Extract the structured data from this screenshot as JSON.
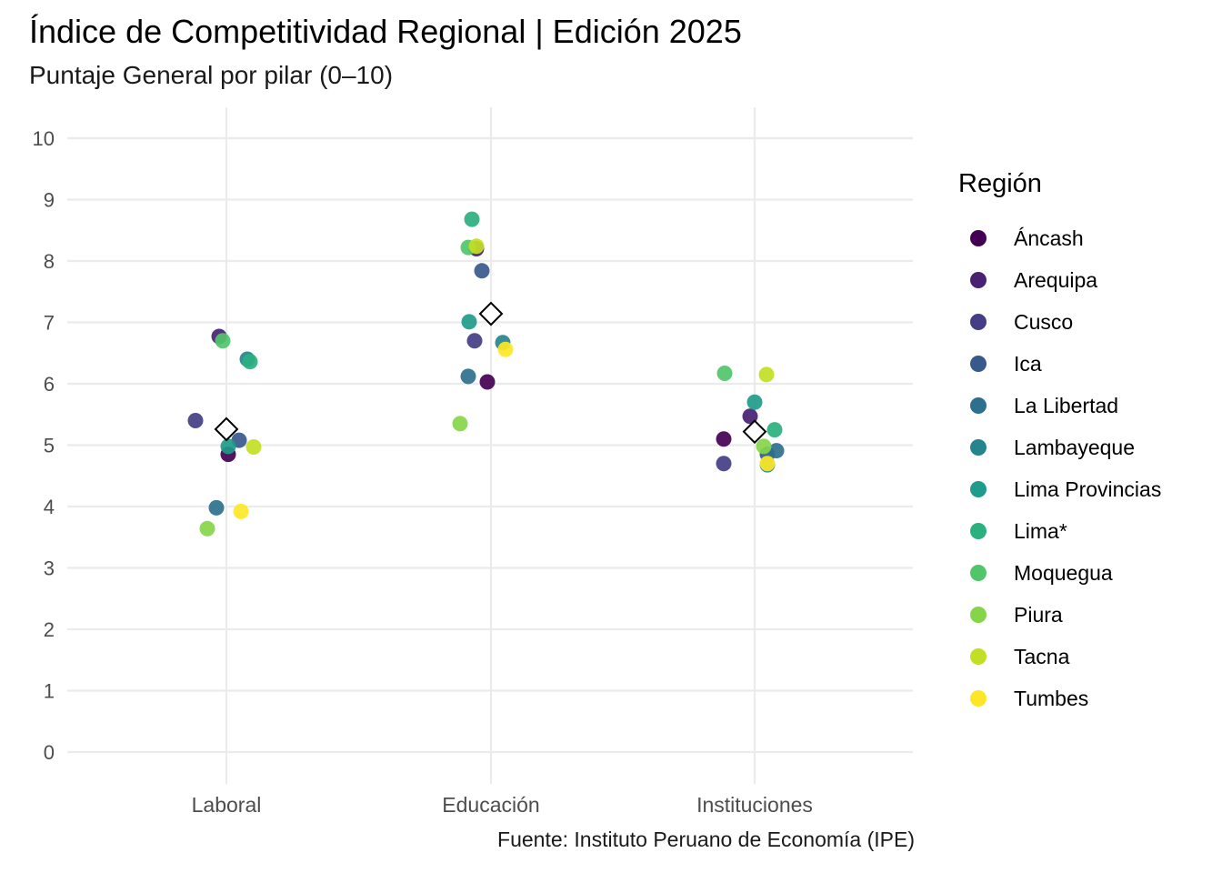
{
  "title": "Índice de Competitividad Regional | Edición 2025",
  "subtitle": "Puntaje General por pilar (0–10)",
  "caption": "Fuente: Instituto Peruano de Economía (IPE)",
  "legend": {
    "title": "Región",
    "placement": "right",
    "items": [
      {
        "label": "Áncash",
        "color": "#440154"
      },
      {
        "label": "Arequipa",
        "color": "#482173"
      },
      {
        "label": "Cusco",
        "color": "#433E85"
      },
      {
        "label": "Ica",
        "color": "#38598C"
      },
      {
        "label": "La Libertad",
        "color": "#2D708E"
      },
      {
        "label": "Lambayeque",
        "color": "#25858E"
      },
      {
        "label": "Lima Provincias",
        "color": "#1E9B8A"
      },
      {
        "label": "Lima*",
        "color": "#2BB07F"
      },
      {
        "label": "Moquegua",
        "color": "#51C56A"
      },
      {
        "label": "Piura",
        "color": "#85D54A"
      },
      {
        "label": "Tacna",
        "color": "#C2DF23"
      },
      {
        "label": "Tumbes",
        "color": "#FDE725"
      }
    ]
  },
  "chart_data": {
    "type": "scatter",
    "categories": [
      "Laboral",
      "Educación",
      "Instituciones"
    ],
    "ylim": [
      0,
      10
    ],
    "yticks": [
      0,
      1,
      2,
      3,
      4,
      5,
      6,
      7,
      8,
      9,
      10
    ],
    "grid": true,
    "series": [
      {
        "name": "Áncash",
        "values": [
          4.85,
          6.03,
          5.1
        ]
      },
      {
        "name": "Arequipa",
        "values": [
          6.77,
          8.2,
          5.47
        ]
      },
      {
        "name": "Cusco",
        "values": [
          5.4,
          6.7,
          4.7
        ]
      },
      {
        "name": "Ica",
        "values": [
          5.08,
          7.84,
          4.85
        ]
      },
      {
        "name": "La Libertad",
        "values": [
          3.98,
          6.12,
          4.91
        ]
      },
      {
        "name": "Lambayeque",
        "values": [
          6.4,
          6.67,
          4.68
        ]
      },
      {
        "name": "Lima Provincias",
        "values": [
          4.98,
          7.01,
          5.7
        ]
      },
      {
        "name": "Lima*",
        "values": [
          6.36,
          8.68,
          5.25
        ]
      },
      {
        "name": "Moquegua",
        "values": [
          6.7,
          8.22,
          6.17
        ]
      },
      {
        "name": "Piura",
        "values": [
          3.64,
          5.35,
          4.98
        ]
      },
      {
        "name": "Tacna",
        "values": [
          4.97,
          8.24,
          6.15
        ]
      },
      {
        "name": "Tumbes",
        "values": [
          3.92,
          6.56,
          4.7
        ]
      }
    ],
    "mean_markers": {
      "shape": "diamond",
      "values": [
        5.26,
        7.14,
        5.22
      ]
    }
  }
}
